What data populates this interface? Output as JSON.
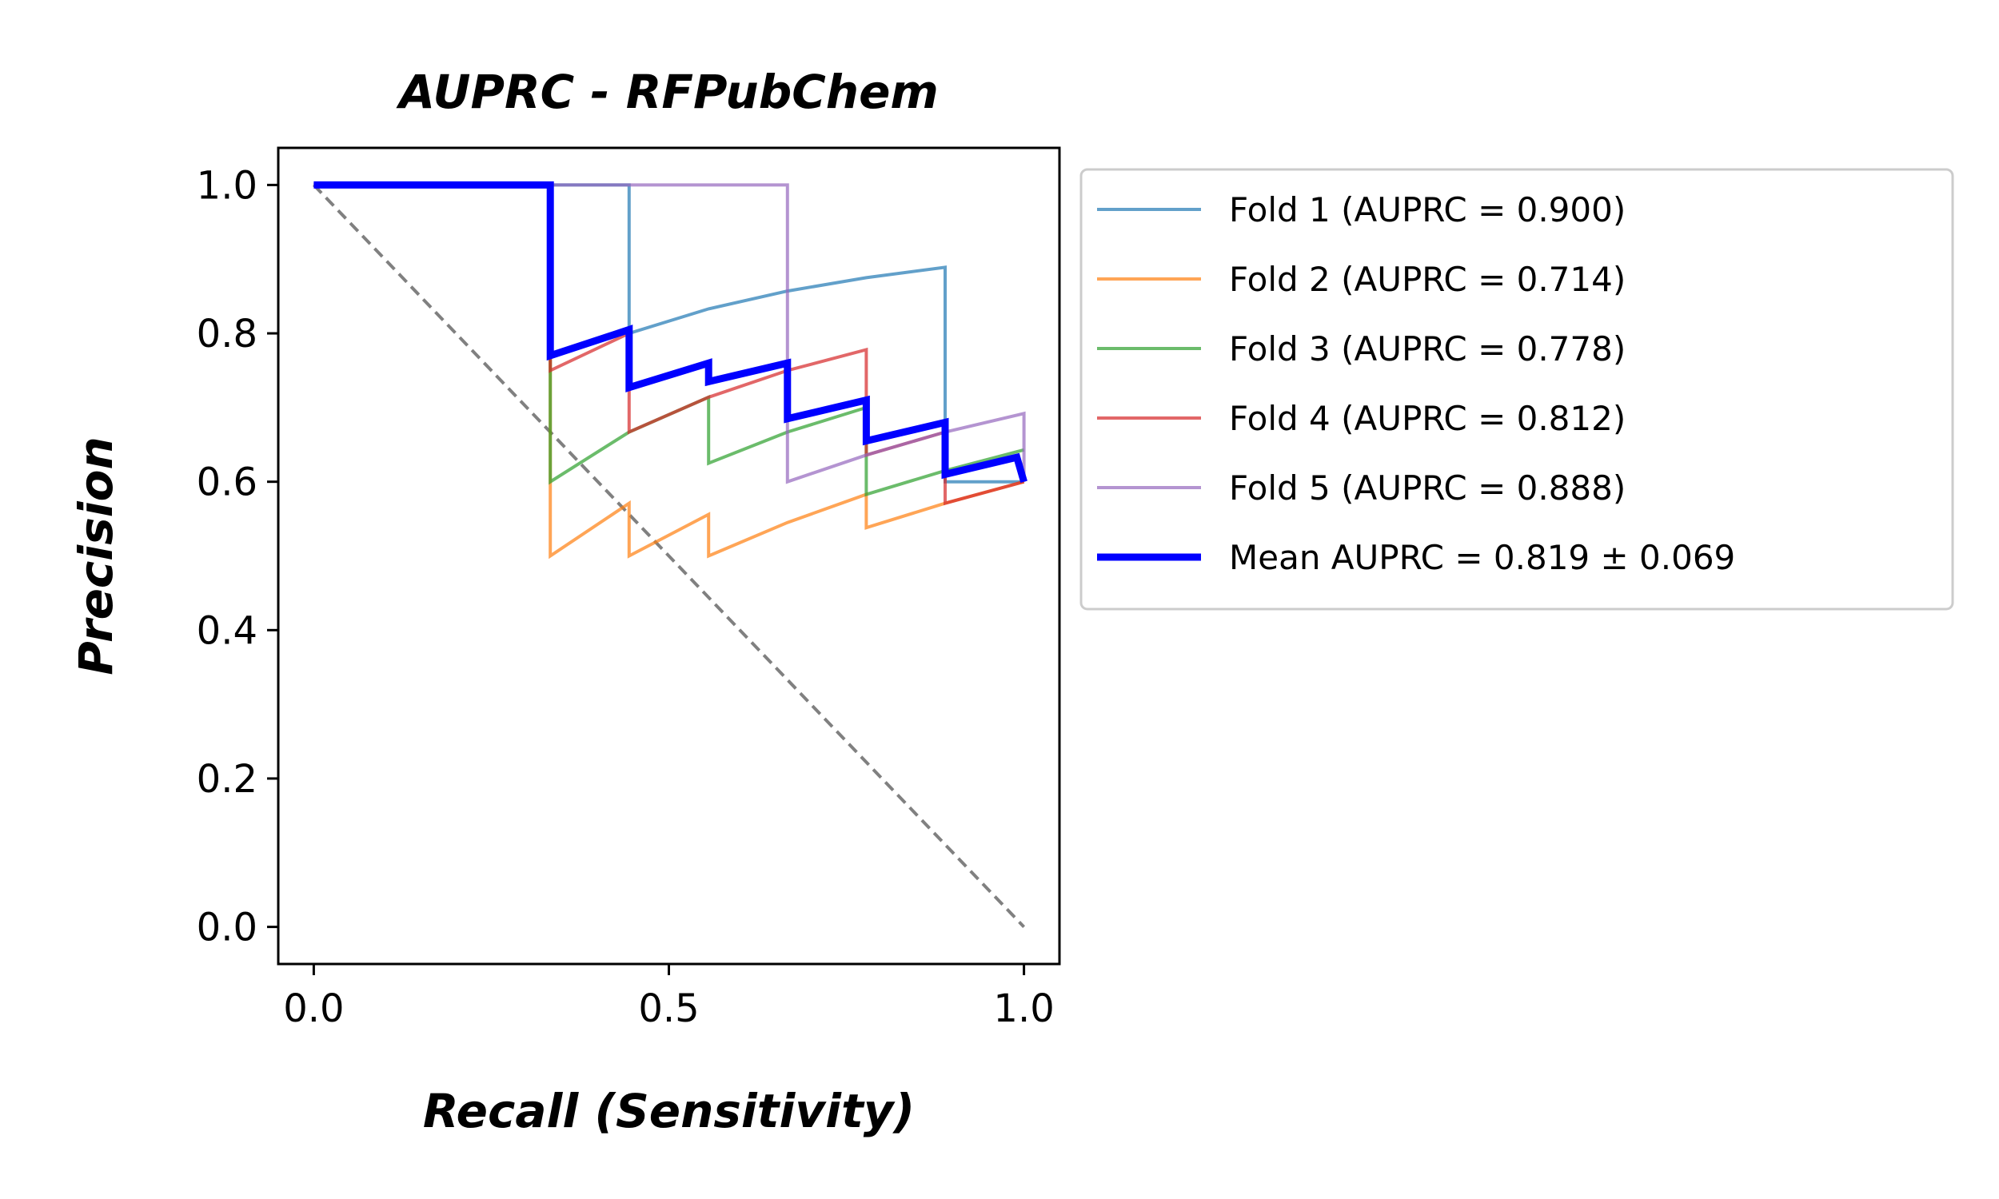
{
  "chart_data": {
    "type": "line",
    "title": "AUPRC - RFPubChem",
    "xlabel": "Recall (Sensitivity)",
    "ylabel": "Precision",
    "xlim": [
      -0.05,
      1.05
    ],
    "ylim": [
      -0.05,
      1.05
    ],
    "x_ticks": [
      0.0,
      0.5,
      1.0
    ],
    "x_tick_labels": [
      "0.0",
      "0.5",
      "1.0"
    ],
    "y_ticks": [
      0.0,
      0.2,
      0.4,
      0.6,
      0.8,
      1.0
    ],
    "y_tick_labels": [
      "0.0",
      "0.2",
      "0.4",
      "0.6",
      "0.8",
      "1.0"
    ],
    "grid": false,
    "legend_position": "outside-right",
    "series": [
      {
        "name": "Fold 1 (AUPRC = 0.900)",
        "color": "#1f77b4",
        "opacity": 0.7,
        "width": 4,
        "x": [
          0.0,
          0.333,
          0.444,
          0.444,
          0.556,
          0.667,
          0.778,
          0.889,
          0.889,
          1.0
        ],
        "y": [
          1.0,
          1.0,
          1.0,
          0.8,
          0.833,
          0.857,
          0.875,
          0.889,
          0.6,
          0.6
        ]
      },
      {
        "name": "Fold 2 (AUPRC = 0.714)",
        "color": "#ff7f0e",
        "opacity": 0.7,
        "width": 4,
        "x": [
          0.0,
          0.333,
          0.333,
          0.444,
          0.444,
          0.556,
          0.556,
          0.667,
          0.778,
          0.778,
          0.889,
          1.0
        ],
        "y": [
          1.0,
          1.0,
          0.5,
          0.571,
          0.5,
          0.556,
          0.5,
          0.545,
          0.583,
          0.538,
          0.571,
          0.6
        ]
      },
      {
        "name": "Fold 3 (AUPRC = 0.778)",
        "color": "#2ca02c",
        "opacity": 0.7,
        "width": 4,
        "x": [
          0.0,
          0.333,
          0.333,
          0.444,
          0.556,
          0.556,
          0.667,
          0.778,
          0.778,
          0.889,
          1.0
        ],
        "y": [
          1.0,
          1.0,
          0.6,
          0.667,
          0.714,
          0.625,
          0.667,
          0.7,
          0.583,
          0.615,
          0.643
        ]
      },
      {
        "name": "Fold 4 (AUPRC = 0.812)",
        "color": "#d62728",
        "opacity": 0.7,
        "width": 4,
        "x": [
          0.0,
          0.333,
          0.333,
          0.444,
          0.444,
          0.556,
          0.667,
          0.778,
          0.778,
          0.889,
          0.889,
          1.0
        ],
        "y": [
          1.0,
          1.0,
          0.75,
          0.8,
          0.667,
          0.714,
          0.75,
          0.778,
          0.636,
          0.667,
          0.571,
          0.6
        ]
      },
      {
        "name": "Fold 5 (AUPRC = 0.888)",
        "color": "#9467bd",
        "opacity": 0.7,
        "width": 4,
        "x": [
          0.0,
          0.333,
          0.444,
          0.556,
          0.667,
          0.667,
          0.778,
          0.889,
          1.0,
          1.0
        ],
        "y": [
          1.0,
          1.0,
          1.0,
          1.0,
          1.0,
          0.6,
          0.636,
          0.667,
          0.692,
          0.6
        ]
      },
      {
        "name": "Mean AUPRC = 0.819 ± 0.069",
        "color": "#0000ff",
        "opacity": 1.0,
        "width": 9,
        "x": [
          0.0,
          0.333,
          0.333,
          0.444,
          0.444,
          0.556,
          0.556,
          0.667,
          0.667,
          0.778,
          0.778,
          0.889,
          0.889,
          0.99,
          1.0
        ],
        "y": [
          1.0,
          1.0,
          0.77,
          0.805,
          0.727,
          0.76,
          0.735,
          0.76,
          0.685,
          0.71,
          0.655,
          0.68,
          0.61,
          0.633,
          0.6
        ]
      }
    ],
    "reference_line": {
      "x": [
        0.0,
        1.0
      ],
      "y": [
        1.0,
        0.0
      ],
      "color": "#808080",
      "dash": true
    }
  }
}
